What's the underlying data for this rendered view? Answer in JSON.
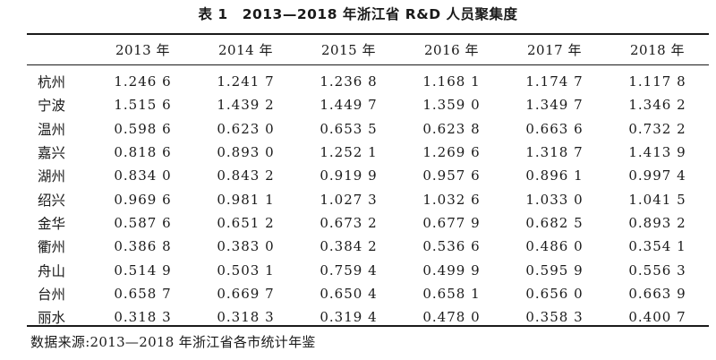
{
  "caption": "表 1　2013—2018 年浙江省 R&D 人员聚集度",
  "table": {
    "columns": [
      "",
      "2013 年",
      "2014 年",
      "2015 年",
      "2016 年",
      "2017 年",
      "2018 年"
    ],
    "rows": [
      [
        "杭州",
        "1.246 6",
        "1.241 7",
        "1.236 8",
        "1.168 1",
        "1.174 7",
        "1.117 8"
      ],
      [
        "宁波",
        "1.515 6",
        "1.439 2",
        "1.449 7",
        "1.359 0",
        "1.349 7",
        "1.346 2"
      ],
      [
        "温州",
        "0.598 6",
        "0.623 0",
        "0.653 5",
        "0.623 8",
        "0.663 6",
        "0.732 2"
      ],
      [
        "嘉兴",
        "0.818 6",
        "0.893 0",
        "1.252 1",
        "1.269 6",
        "1.318 7",
        "1.413 9"
      ],
      [
        "湖州",
        "0.834 0",
        "0.843 2",
        "0.919 9",
        "0.957 6",
        "0.896 1",
        "0.997 4"
      ],
      [
        "绍兴",
        "0.969 6",
        "0.981 1",
        "1.027 3",
        "1.032 6",
        "1.033 0",
        "1.041 5"
      ],
      [
        "金华",
        "0.587 6",
        "0.651 2",
        "0.673 2",
        "0.677 9",
        "0.682 5",
        "0.893 2"
      ],
      [
        "衢州",
        "0.386 8",
        "0.383 0",
        "0.384 2",
        "0.536 6",
        "0.486 0",
        "0.354 1"
      ],
      [
        "舟山",
        "0.514 9",
        "0.503 1",
        "0.759 4",
        "0.499 9",
        "0.595 9",
        "0.556 3"
      ],
      [
        "台州",
        "0.658 7",
        "0.669 7",
        "0.650 4",
        "0.658 1",
        "0.656 0",
        "0.663 9"
      ],
      [
        "丽水",
        "0.318 3",
        "0.318 3",
        "0.319 4",
        "0.478 0",
        "0.358 3",
        "0.400 7"
      ]
    ]
  },
  "source_note": "数据来源:2013—2018 年浙江省各市统计年鉴"
}
